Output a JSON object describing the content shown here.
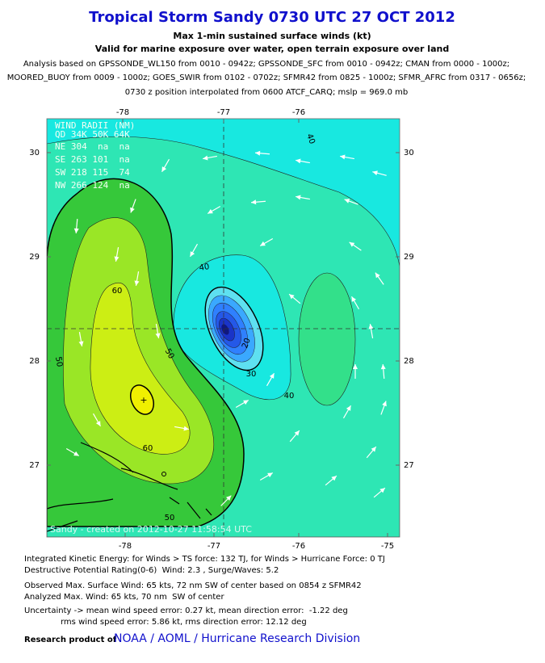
{
  "header": {
    "title": "Tropical Storm Sandy 0730 UTC 27 OCT 2012",
    "subtitle": "Max 1-min sustained surface winds (kt)",
    "validity": "Valid for marine exposure over water, open terrain exposure over land",
    "analysis_lines": [
      "Analysis based on GPSSONDE_WL150 from 0010 - 0942z; GPSSONDE_SFC from 0010 - 0942z; CMAN from 0000 - 1000z;",
      "MOORED_BUOY from 0009 - 1000z; GOES_SWIR from 0102 - 0702z; SFMR42 from 0825 - 1000z; SFMR_AFRC from 0317 - 0656z;",
      "0730 z position interpolated from 0600 ATCF_CARQ; mslp = 969.0 mb"
    ]
  },
  "map": {
    "top_lon_labels": [
      "-78",
      "-77",
      "-76"
    ],
    "bottom_lon_labels": [
      "-78",
      "-77",
      "-76",
      "-75"
    ],
    "left_lat_labels": [
      "30",
      "29",
      "28",
      "27"
    ],
    "right_lat_labels": [
      "30",
      "29",
      "28",
      "27"
    ],
    "wind_radii": {
      "title": "WIND RADII (NM)",
      "rows": [
        "QD 34K 50K 64K",
        "NE 304  na  na",
        "SE 263 101  na",
        "SW 218 115  74",
        "NW 266 124  na"
      ]
    },
    "contour_labels": [
      "40",
      "40",
      "60",
      "50",
      "50",
      "60",
      "50",
      "30",
      "20",
      "40"
    ],
    "watermark": "Sandy - created on 2012-10-27 11:58:54 UTC"
  },
  "footer": {
    "lines": [
      "Integrated Kinetic Energy: for Winds > TS force: 132 TJ, for Winds > Hurricane Force: 0 TJ",
      "Destructive Potential Rating(0-6)  Wind: 2.3 , Surge/Waves: 5.2",
      "Observed Max. Surface Wind: 65 kts, 72 nm SW of center based on 0854 z SFMR42",
      "Analyzed Max. Wind: 65 kts, 70 nm  SW of center",
      "Uncertainty -> mean wind speed error: 0.27 kt, mean direction error:  -1.22 deg",
      "rms wind speed error: 5.86 kt, rms direction error: 12.12 deg"
    ],
    "credit_label": "Research product of",
    "credit_org": "NOAA / AOML / Hurricane Research Division"
  }
}
